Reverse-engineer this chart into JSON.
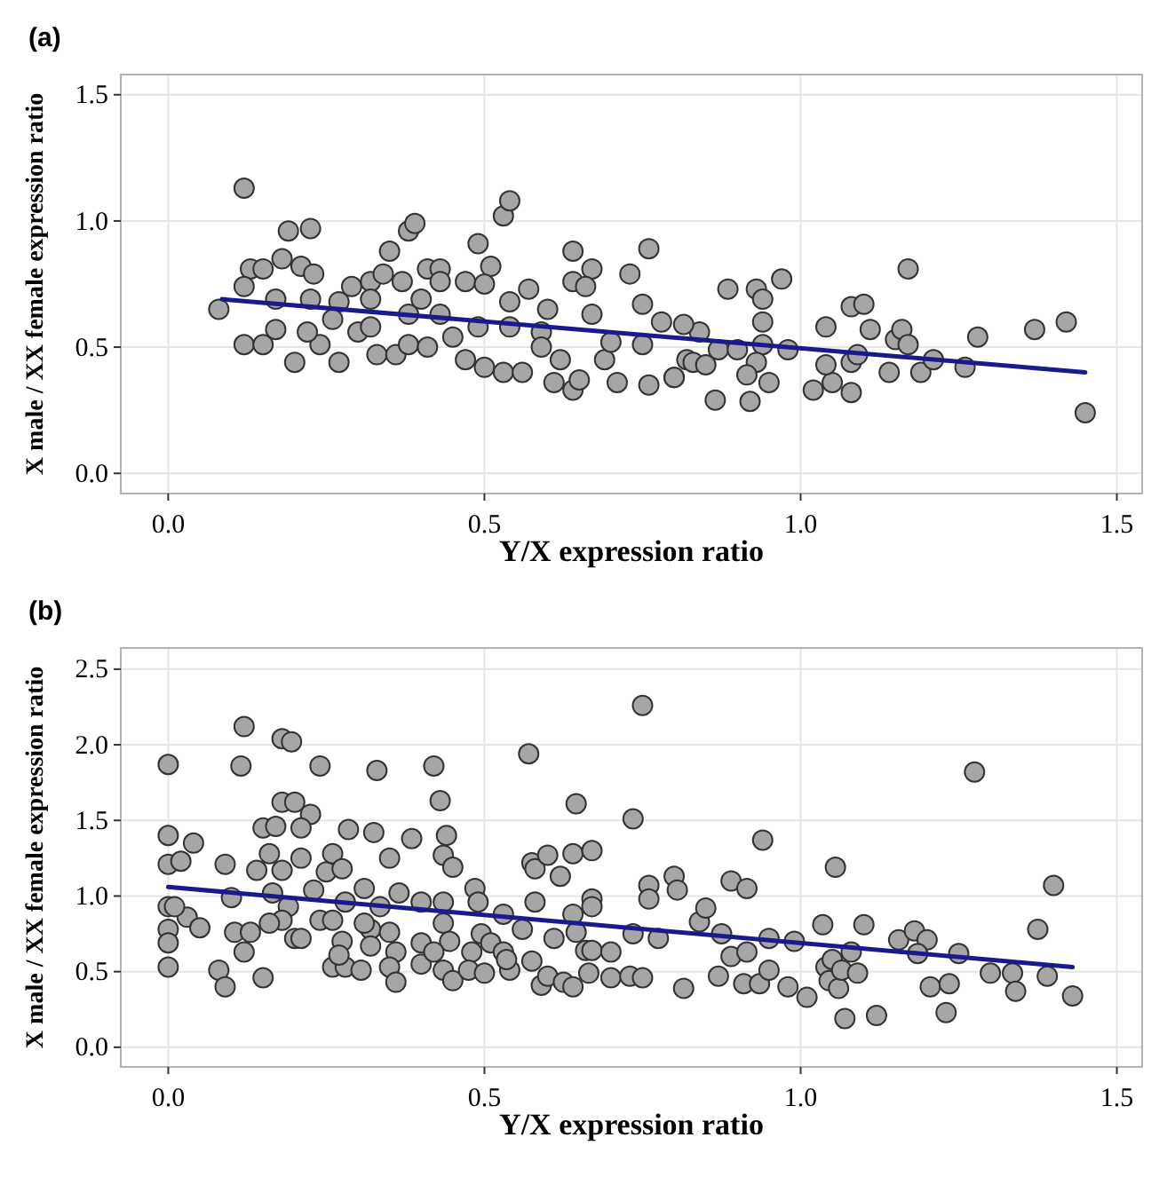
{
  "chart_data": [
    {
      "type": "scatter",
      "title": "(a)",
      "xlabel": "Y/X expression ratio",
      "ylabel": "X male / XX female expression ratio",
      "xlim": [
        -0.075,
        1.54
      ],
      "ylim": [
        -0.08,
        1.58
      ],
      "xticks": [
        {
          "value": 0,
          "label": "0.0"
        },
        {
          "value": 0.5,
          "label": "0.5"
        },
        {
          "value": 1,
          "label": "1.0"
        },
        {
          "value": 1.5,
          "label": "1.5"
        }
      ],
      "yticks": [
        {
          "value": 0,
          "label": "0.0"
        },
        {
          "value": 0.5,
          "label": "0.5"
        },
        {
          "value": 1,
          "label": "1.0"
        },
        {
          "value": 1.5,
          "label": "1.5"
        }
      ],
      "grid": true,
      "series": [
        {
          "type": "scatter",
          "marker": "circle",
          "color": "#a6a6a6",
          "x": [
            0.12,
            0.19,
            0.225,
            0.18,
            0.13,
            0.15,
            0.21,
            0.23,
            0.08,
            0.12,
            0.12,
            0.15,
            0.2,
            0.27,
            0.24,
            0.17,
            0.17,
            0.225,
            0.29,
            0.32,
            0.35,
            0.38,
            0.39,
            0.34,
            0.37,
            0.41,
            0.43,
            0.43,
            0.47,
            0.49,
            0.53,
            0.54,
            0.51,
            0.5,
            0.4,
            0.32,
            0.27,
            0.26,
            0.3,
            0.33,
            0.36,
            0.38,
            0.41,
            0.45,
            0.47,
            0.5,
            0.53,
            0.56,
            0.49,
            0.43,
            0.38,
            0.32,
            0.22,
            0.54,
            0.57,
            0.6,
            0.64,
            0.64,
            0.67,
            0.66,
            0.59,
            0.59,
            0.62,
            0.61,
            0.64,
            0.65,
            0.69,
            0.71,
            0.73,
            0.76,
            0.75,
            0.76,
            0.8,
            0.82,
            0.78,
            0.67,
            0.7,
            0.75,
            0.54,
            0.885,
            0.93,
            0.94,
            0.97,
            0.94,
            0.94,
            0.98,
            0.93,
            0.915,
            0.95,
            0.865,
            0.92,
            0.8,
            0.83,
            0.85,
            0.87,
            0.84,
            0.815,
            0.9,
            1.04,
            1.02,
            1.05,
            1.08,
            1.04,
            1.08,
            1.09,
            1.08,
            1.1,
            1.11,
            1.15,
            1.16,
            1.17,
            1.17,
            1.14,
            1.19,
            1.21,
            1.26,
            1.28,
            1.37,
            1.42,
            1.45
          ],
          "values": [
            1.13,
            0.96,
            0.97,
            0.85,
            0.81,
            0.81,
            0.82,
            0.79,
            0.65,
            0.74,
            0.51,
            0.51,
            0.44,
            0.44,
            0.51,
            0.69,
            0.57,
            0.69,
            0.74,
            0.76,
            0.88,
            0.96,
            0.99,
            0.79,
            0.76,
            0.81,
            0.81,
            0.76,
            0.76,
            0.91,
            1.02,
            1.08,
            0.82,
            0.75,
            0.69,
            0.69,
            0.68,
            0.61,
            0.56,
            0.47,
            0.47,
            0.51,
            0.5,
            0.54,
            0.45,
            0.42,
            0.4,
            0.4,
            0.58,
            0.63,
            0.63,
            0.58,
            0.56,
            0.68,
            0.73,
            0.65,
            0.88,
            0.76,
            0.81,
            0.74,
            0.56,
            0.5,
            0.45,
            0.36,
            0.33,
            0.37,
            0.45,
            0.36,
            0.79,
            0.89,
            0.67,
            0.35,
            0.38,
            0.45,
            0.6,
            0.63,
            0.52,
            0.51,
            0.58,
            0.73,
            0.73,
            0.69,
            0.77,
            0.6,
            0.51,
            0.49,
            0.44,
            0.39,
            0.36,
            0.29,
            0.285,
            0.38,
            0.44,
            0.43,
            0.49,
            0.56,
            0.59,
            0.49,
            0.58,
            0.33,
            0.36,
            0.32,
            0.43,
            0.44,
            0.47,
            0.66,
            0.67,
            0.57,
            0.53,
            0.57,
            0.51,
            0.81,
            0.4,
            0.4,
            0.45,
            0.42,
            0.54,
            0.57,
            0.6,
            0.24
          ]
        },
        {
          "type": "line",
          "marker": "none",
          "color": "#1a1a8c",
          "x": [
            0.085,
            1.45
          ],
          "values": [
            0.69,
            0.4
          ]
        }
      ]
    },
    {
      "type": "scatter",
      "title": "(b)",
      "xlabel": "Y/X expression ratio",
      "ylabel": "X male / XX female expression ratio",
      "xlim": [
        -0.075,
        1.54
      ],
      "ylim": [
        -0.13,
        2.64
      ],
      "xticks": [
        {
          "value": 0,
          "label": "0.0"
        },
        0.5,
        {
          "value": 1,
          "label": "1.0"
        },
        1.5
      ],
      "yticks": [
        {
          "value": 0,
          "label": "0.0"
        },
        0.5,
        {
          "value": 1,
          "label": "1.0"
        },
        1.5,
        {
          "value": 2,
          "label": "2.0"
        },
        2.5
      ],
      "grid": true,
      "series": [
        {
          "type": "scatter",
          "marker": "circle",
          "color": "#a6a6a6",
          "x": [
            0,
            0,
            0,
            0,
            0,
            0,
            0,
            0.02,
            0.04,
            0.03,
            0.05,
            0.01,
            0.12,
            0.115,
            0.09,
            0.1,
            0.08,
            0.09,
            0.15,
            0.12,
            0.105,
            0.13,
            0.14,
            0.15,
            0.17,
            0.16,
            0.18,
            0.195,
            0.18,
            0.2,
            0.225,
            0.21,
            0.21,
            0.18,
            0.165,
            0.19,
            0.18,
            0.2,
            0.21,
            0.16,
            0.24,
            0.23,
            0.25,
            0.26,
            0.275,
            0.28,
            0.24,
            0.26,
            0.275,
            0.26,
            0.28,
            0.27,
            0.285,
            0.325,
            0.33,
            0.35,
            0.31,
            0.305,
            0.32,
            0.31,
            0.32,
            0.335,
            0.35,
            0.36,
            0.35,
            0.36,
            0.365,
            0.385,
            0.4,
            0.4,
            0.4,
            0.42,
            0.43,
            0.44,
            0.435,
            0.45,
            0.435,
            0.435,
            0.445,
            0.435,
            0.45,
            0.42,
            0.485,
            0.49,
            0.48,
            0.475,
            0.5,
            0.495,
            0.51,
            0.53,
            0.53,
            0.54,
            0.535,
            0.56,
            0.57,
            0.575,
            0.58,
            0.58,
            0.575,
            0.59,
            0.6,
            0.6,
            0.62,
            0.61,
            0.64,
            0.645,
            0.64,
            0.645,
            0.625,
            0.64,
            0.665,
            0.67,
            0.67,
            0.67,
            0.66,
            0.67,
            0.7,
            0.7,
            0.73,
            0.75,
            0.75,
            0.735,
            0.735,
            0.76,
            0.76,
            0.775,
            0.8,
            0.805,
            0.815,
            0.84,
            0.85,
            0.87,
            0.875,
            0.89,
            0.915,
            0.94,
            0.89,
            0.915,
            0.91,
            0.935,
            0.95,
            0.95,
            0.98,
            0.99,
            1.01,
            1.035,
            1.055,
            1.04,
            1.05,
            1.045,
            1.06,
            1.065,
            1.09,
            1.08,
            1.1,
            1.07,
            1.12,
            1.155,
            1.18,
            1.2,
            1.185,
            1.205,
            1.235,
            1.23,
            1.25,
            1.275,
            1.3,
            1.335,
            1.34,
            1.375,
            1.39,
            1.4,
            1.43
          ],
          "values": [
            1.87,
            1.4,
            1.21,
            0.93,
            0.78,
            0.69,
            0.53,
            1.23,
            1.35,
            0.86,
            0.79,
            0.93,
            2.12,
            1.86,
            1.21,
            0.99,
            0.51,
            0.4,
            0.46,
            0.63,
            0.76,
            0.76,
            1.17,
            1.45,
            1.46,
            1.28,
            2.04,
            2.02,
            1.62,
            1.62,
            1.54,
            1.45,
            1.25,
            1.17,
            1.02,
            0.93,
            0.84,
            0.72,
            0.72,
            0.82,
            1.86,
            1.04,
            1.16,
            1.28,
            1.18,
            0.96,
            0.84,
            0.84,
            0.7,
            0.53,
            0.53,
            0.61,
            1.44,
            1.42,
            1.83,
            1.25,
            1.05,
            0.51,
            0.78,
            0.82,
            0.67,
            0.93,
            0.76,
            0.63,
            0.53,
            0.43,
            1.02,
            1.38,
            0.96,
            0.69,
            0.55,
            1.86,
            1.63,
            1.4,
            1.27,
            1.19,
            0.96,
            0.82,
            0.7,
            0.51,
            0.44,
            0.63,
            1.05,
            0.96,
            0.63,
            0.51,
            0.49,
            0.75,
            0.69,
            0.88,
            0.63,
            0.51,
            0.58,
            0.78,
            1.94,
            1.22,
            1.18,
            0.96,
            0.57,
            0.41,
            1.27,
            0.47,
            1.13,
            0.72,
            1.28,
            1.61,
            0.88,
            0.76,
            0.43,
            0.4,
            0.49,
            1.3,
            0.98,
            0.93,
            0.64,
            0.64,
            0.63,
            0.46,
            0.47,
            0.46,
            2.26,
            1.51,
            0.75,
            1.07,
            0.98,
            0.72,
            1.13,
            1.04,
            0.39,
            0.83,
            0.92,
            0.47,
            0.75,
            1.1,
            1.05,
            1.37,
            0.6,
            0.63,
            0.42,
            0.42,
            0.51,
            0.72,
            0.4,
            0.7,
            0.33,
            0.81,
            1.19,
            0.53,
            0.58,
            0.44,
            0.39,
            0.51,
            0.49,
            0.63,
            0.81,
            0.19,
            0.21,
            0.71,
            0.77,
            0.71,
            0.62,
            0.4,
            0.42,
            0.23,
            0.62,
            1.82,
            0.49,
            0.49,
            0.37,
            0.78,
            0.47,
            1.07,
            0.34
          ]
        },
        {
          "type": "line",
          "marker": "none",
          "color": "#1a1a8c",
          "x": [
            0,
            1.43
          ],
          "values": [
            1.06,
            0.53
          ]
        }
      ]
    }
  ]
}
